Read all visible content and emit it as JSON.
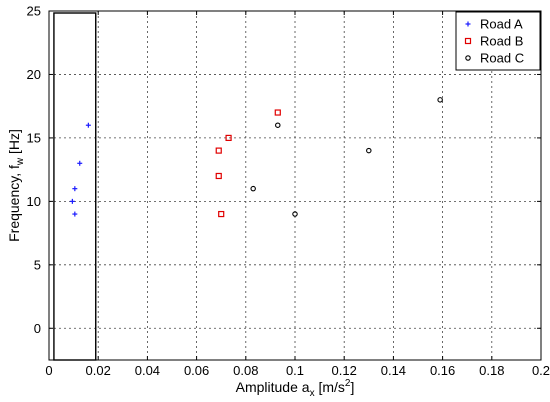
{
  "chart_data": {
    "type": "scatter",
    "xlabel": "Amplitude a",
    "xlabel_sub": "x",
    "xlabel_unit": " [m/s",
    "xlabel_sup": "2",
    "xlabel_end": "]",
    "ylabel": "Frequency, f",
    "ylabel_sub": "w",
    "ylabel_unit": " [Hz]",
    "xlim": [
      0,
      0.2
    ],
    "ylim": [
      -2.5,
      25
    ],
    "xticks": [
      0,
      0.02,
      0.04,
      0.06,
      0.08,
      0.1,
      0.12,
      0.14,
      0.16,
      0.18,
      0.2
    ],
    "xtick_labels": [
      "0",
      "0.02",
      "0.04",
      "0.06",
      "0.08",
      "0.1",
      "0.12",
      "0.14",
      "0.16",
      "0.18",
      "0.2"
    ],
    "yticks": [
      0,
      5,
      10,
      15,
      20,
      25
    ],
    "ytick_labels": [
      "0",
      "5",
      "10",
      "15",
      "20",
      "25"
    ],
    "grid": true,
    "legend_position": "top-right",
    "series": [
      {
        "name": "Road A",
        "marker": "plus",
        "color": "#1a1aff",
        "points": [
          [
            0.0095,
            10
          ],
          [
            0.0105,
            11
          ],
          [
            0.0105,
            9
          ],
          [
            0.0125,
            13
          ],
          [
            0.016,
            16
          ]
        ]
      },
      {
        "name": "Road B",
        "marker": "square",
        "color": "#e00000",
        "points": [
          [
            0.069,
            12
          ],
          [
            0.069,
            14
          ],
          [
            0.07,
            9
          ],
          [
            0.073,
            15
          ],
          [
            0.093,
            17
          ]
        ]
      },
      {
        "name": "Road C",
        "marker": "circle",
        "color": "#000000",
        "points": [
          [
            0.083,
            11
          ],
          [
            0.093,
            16
          ],
          [
            0.1,
            9
          ],
          [
            0.13,
            14
          ],
          [
            0.159,
            18
          ]
        ]
      }
    ],
    "annotations": [
      {
        "type": "rectangle",
        "x0": 0.002,
        "x1": 0.019,
        "y0": -2.5,
        "y1": 25
      }
    ]
  }
}
